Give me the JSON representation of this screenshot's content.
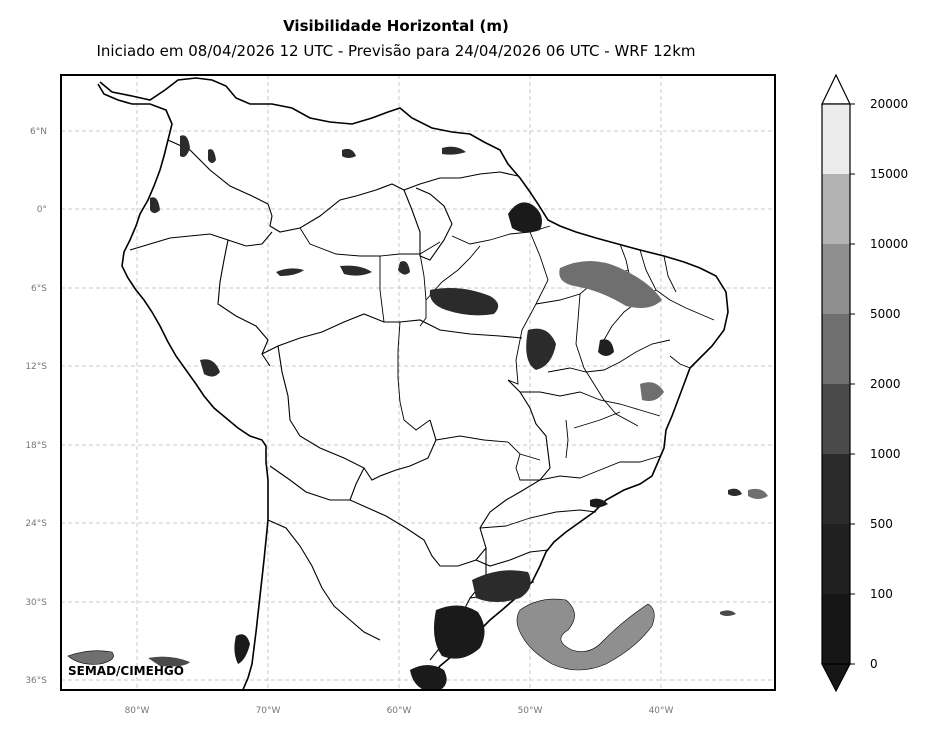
{
  "title": "Visibilidade Horizontal (m)",
  "subtitle": "Iniciado em 08/04/2026 12 UTC - Previsão para 24/04/2026 06 UTC - WRF 12km",
  "credit": "SEMAD/CIMEHGO",
  "lat_labels": [
    "6°N",
    "0°",
    "6°S",
    "12°S",
    "18°S",
    "24°S",
    "30°S",
    "36°S"
  ],
  "lon_labels": [
    "80°W",
    "70°W",
    "60°W",
    "50°W",
    "40°W"
  ],
  "colorbar": {
    "ticks": [
      "0",
      "100",
      "500",
      "1000",
      "2000",
      "5000",
      "10000",
      "15000",
      "20000"
    ],
    "colors": [
      "#161616",
      "#202020",
      "#2b2b2b",
      "#4a4a4a",
      "#6f6f6f",
      "#8f8f8f",
      "#b3b3b3",
      "#ececec"
    ],
    "extend": "both"
  },
  "map": {
    "projection": "Plate Carrée",
    "extent_lon": [
      -86,
      -31.5
    ],
    "extent_lat": [
      -36.8,
      10
    ],
    "grid": "dashed",
    "colormap": "grayscale"
  }
}
